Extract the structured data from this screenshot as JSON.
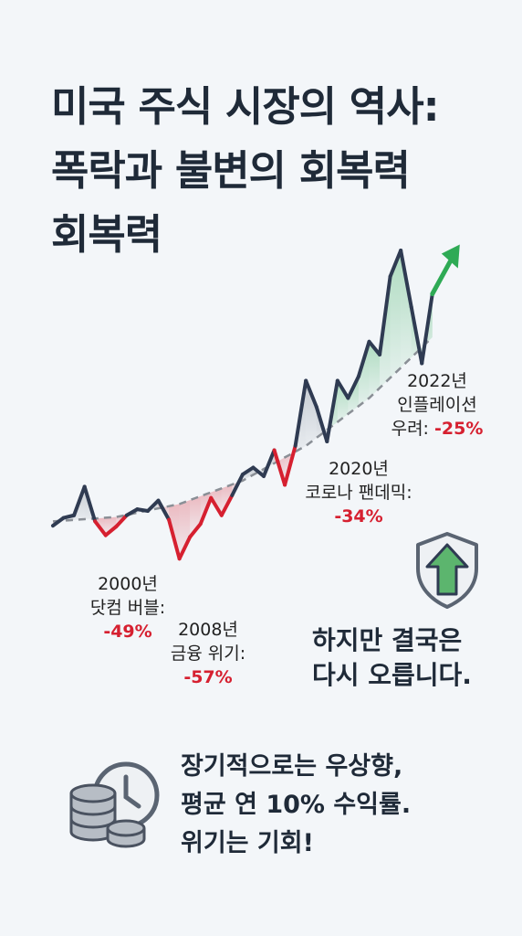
{
  "title": {
    "line1": "미국 주식 시장의 역사:",
    "line2": "폭락과 불변의 회복력",
    "line3": "회복력"
  },
  "chart_data": {
    "type": "line",
    "title": "미국 주식 시장의 역사: 폭락과 불변의 회복력",
    "xlabel": "",
    "ylabel": "",
    "grid": false,
    "legend": "none",
    "series": [
      {
        "name": "",
        "x": [
          0,
          1,
          2,
          3,
          4,
          5,
          6,
          7,
          8,
          9,
          10,
          11,
          12,
          13,
          14,
          15,
          16,
          17,
          18,
          19,
          20,
          21,
          22,
          23,
          24,
          25,
          26,
          27,
          28,
          29,
          30,
          31,
          32,
          33,
          34,
          35,
          36
        ],
        "y": [
          3,
          12,
          15,
          48,
          8,
          -8,
          2,
          15,
          22,
          20,
          32,
          10,
          -35,
          -10,
          5,
          35,
          15,
          38,
          62,
          70,
          60,
          90,
          50,
          95,
          170,
          140,
          100,
          170,
          150,
          175,
          215,
          200,
          290,
          320,
          255,
          190,
          270
        ]
      },
      {
        "name": "",
        "style": "dashed-trend",
        "x": [
          0,
          6,
          12,
          18,
          24,
          30,
          36
        ],
        "y": [
          8,
          13,
          28,
          55,
          95,
          150,
          220
        ]
      }
    ],
    "annotations": [
      {
        "year": "2000년",
        "label": "닷컴 버블:",
        "change": "-49%"
      },
      {
        "year": "2008년",
        "label": "금융 위기:",
        "change": "-57%"
      },
      {
        "year": "2020년",
        "label": "코로나 팬데믹:",
        "change": "-34%"
      },
      {
        "year": "2022년",
        "label": "인플레이션",
        "label2": "우려:",
        "change": "-25%"
      }
    ],
    "colors": {
      "line": "#2f3b52",
      "trend": "#8a8f96",
      "drawdown": "#d62030",
      "above_fill": "#9aa2ad",
      "green": "#2eaa55"
    }
  },
  "rebound_note": {
    "line1": "하지만 결국은",
    "line2": "다시 오릅니다."
  },
  "summary": {
    "line1": "장기적으로는 우상향,",
    "line2": "평균 연 10% 수익률.",
    "line3": "위기는 기회!"
  },
  "icons": [
    "shield-up-arrow-icon",
    "coins-clock-icon"
  ]
}
